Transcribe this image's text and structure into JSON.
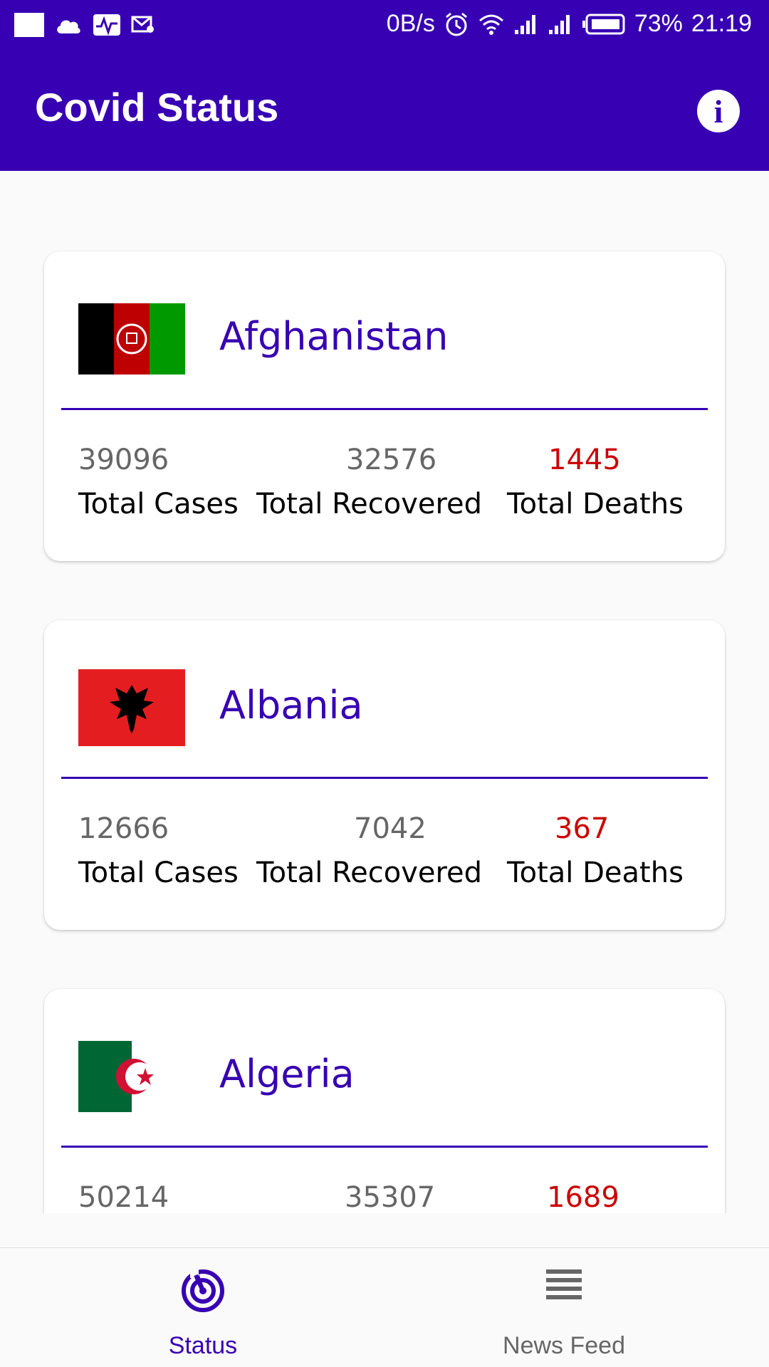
{
  "status_bar": {
    "net_speed": "0B/s",
    "battery": "73%",
    "time": "21:19"
  },
  "app_bar": {
    "title": "Covid Status",
    "info_icon": "info-icon"
  },
  "countries": [
    {
      "name": "Afghanistan",
      "flag_icon": "afghanistan-flag",
      "total_cases": "39096",
      "total_recovered": "32576",
      "total_deaths": "1445"
    },
    {
      "name": "Albania",
      "flag_icon": "albania-flag",
      "total_cases": "12666",
      "total_recovered": "7042",
      "total_deaths": "367"
    },
    {
      "name": "Algeria",
      "flag_icon": "algeria-flag",
      "total_cases": "50214",
      "total_recovered": "35307",
      "total_deaths": "1689"
    }
  ],
  "labels": {
    "total_cases": "Total Cases",
    "total_recovered": "Total Recovered",
    "total_deaths": "Total Deaths"
  },
  "bottom_nav": {
    "items": [
      {
        "label": "Status",
        "icon": "radar-icon",
        "active": true
      },
      {
        "label": "News Feed",
        "icon": "news-feed-icon",
        "active": false
      }
    ]
  },
  "colors": {
    "primary": "#3700b3",
    "deaths": "#cc0000",
    "number_gray": "#666666",
    "inactive_nav": "#666666"
  }
}
